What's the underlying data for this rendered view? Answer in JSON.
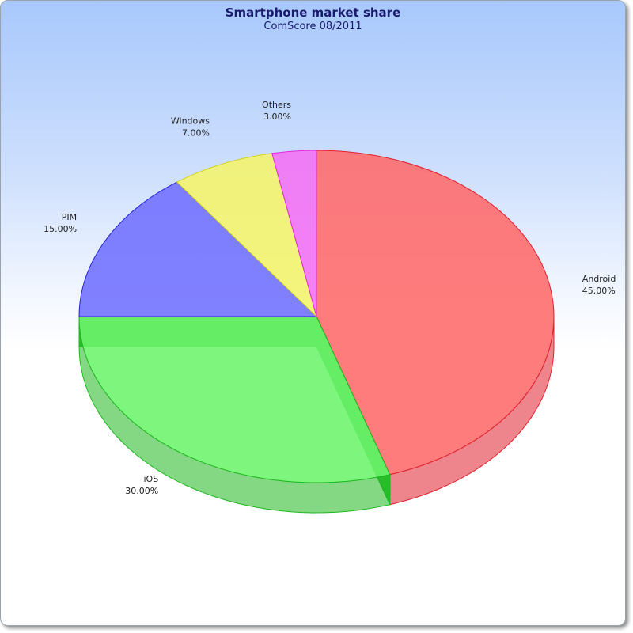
{
  "chart_data": {
    "type": "pie",
    "title": "Smartphone market share",
    "subtitle": "ComScore 08/2011",
    "slices": [
      {
        "label": "Android",
        "value": 45.0,
        "value_label": "45.00%",
        "color": "#ff6a6a",
        "dark": "#e0212e"
      },
      {
        "label": "iOS",
        "value": 30.0,
        "value_label": "30.00%",
        "color": "#6cf56c",
        "dark": "#1fb81f"
      },
      {
        "label": "PIM",
        "value": 15.0,
        "value_label": "15.00%",
        "color": "#6f6fff",
        "dark": "#2424dc"
      },
      {
        "label": "Windows",
        "value": 7.0,
        "value_label": "7.00%",
        "color": "#f4f46a",
        "dark": "#d2d21c"
      },
      {
        "label": "Others",
        "value": 3.0,
        "value_label": "3.00%",
        "color": "#f46ff4",
        "dark": "#e02ae0"
      }
    ],
    "start_angle": "12 o'clock, clockwise",
    "legend": "none"
  }
}
